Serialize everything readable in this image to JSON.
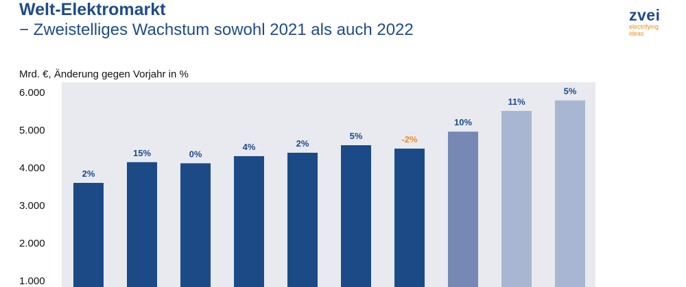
{
  "header": {
    "title": "Welt-Elektromarkt",
    "subtitle": "− Zweistelliges Wachstum sowohl 2021 als auch 2022"
  },
  "logo": {
    "word": "zvei",
    "tagline_1": "electrifying",
    "tagline_2": "ideas"
  },
  "colors": {
    "title": "#1e4b8c",
    "plot_background": "#e8eaf0",
    "bar_actual": "#1b4a87",
    "bar_estimate": "#7688b4",
    "bar_forecast": "#a8b6d1",
    "label_positive": "#1e4b8c",
    "label_negative": "#ee8a1f",
    "logo_accent": "#ee8a1f"
  },
  "chart_data": {
    "type": "bar",
    "unit_label": "Mrd. €, Änderung gegen Vorjahr in %",
    "ylim": [
      1000,
      6000
    ],
    "yticks": [
      "1.000",
      "2.000",
      "3.000",
      "4.000",
      "5.000",
      "6.000"
    ],
    "ytick_values": [
      1000,
      2000,
      3000,
      4000,
      5000,
      6000
    ],
    "grid": false,
    "values": [
      3600,
      4150,
      4120,
      4310,
      4400,
      4600,
      4510,
      4960,
      5510,
      5790
    ],
    "change_labels": [
      "2%",
      "15%",
      "0%",
      "4%",
      "2%",
      "5%",
      "-2%",
      "10%",
      "11%",
      "5%"
    ],
    "bar_kind": [
      "actual",
      "actual",
      "actual",
      "actual",
      "actual",
      "actual",
      "actual",
      "estimate",
      "forecast",
      "forecast"
    ]
  }
}
